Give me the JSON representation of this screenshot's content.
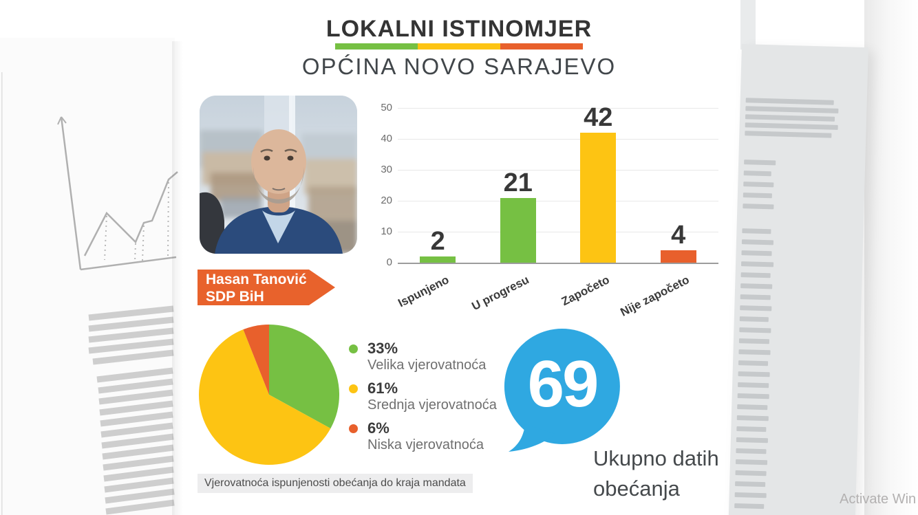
{
  "header": {
    "title": "LOKALNI ISTINOMJER",
    "subtitle": "OPĆINA NOVO SARAJEVO",
    "brand_colors": {
      "green": "#76C043",
      "yellow": "#FDC413",
      "orange": "#E8602C"
    }
  },
  "candidate": {
    "name": "Hasan Tanović",
    "party": "SDP BiH",
    "banner_color": "#E8622C"
  },
  "chart_data": [
    {
      "type": "bar",
      "categories": [
        "Ispunjeno",
        "U progresu",
        "Započeto",
        "Nije započeto"
      ],
      "values": [
        2,
        21,
        42,
        4
      ],
      "bar_colors": [
        "#76C043",
        "#76C043",
        "#FDC413",
        "#E8602C"
      ],
      "title": "",
      "xlabel": "",
      "ylabel": "",
      "ylim": [
        0,
        50
      ],
      "yticks": [
        0,
        10,
        20,
        30,
        40,
        50
      ],
      "grid": true,
      "value_labels": true,
      "xlabel_rotation_deg": -27
    },
    {
      "type": "pie",
      "slices": [
        {
          "label": "Velika vjerovatnoća",
          "pct": 33,
          "pct_label": "33%",
          "color": "#76C043"
        },
        {
          "label": "Srednja vjerovatnoća",
          "pct": 61,
          "pct_label": "61%",
          "color": "#FDC413"
        },
        {
          "label": "Niska vjerovatnoća",
          "pct": 6,
          "pct_label": "6%",
          "color": "#E8602C"
        }
      ],
      "start_angle": "top",
      "direction": "clockwise",
      "legend_position": "right",
      "caption": "Vjerovatnoća ispunjenosti obećanja do kraja mandata"
    }
  ],
  "total_badge": {
    "value": "69",
    "label_line1": "Ukupno datih",
    "label_line2": "obećanja",
    "bubble_color": "#2FA8E1"
  },
  "watermark": "Activate Win"
}
